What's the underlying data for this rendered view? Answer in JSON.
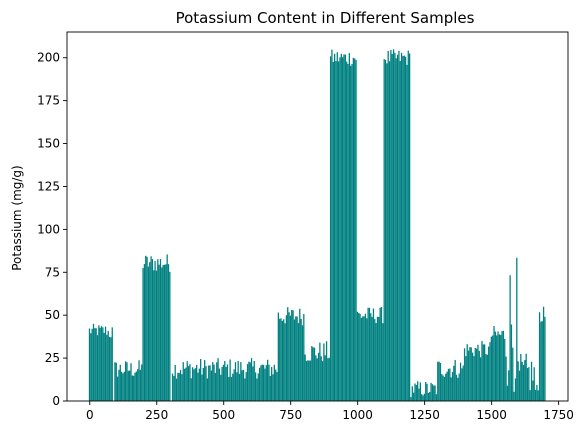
{
  "chart_data": {
    "type": "bar",
    "title": "Potassium Content in Different Samples",
    "xlabel": "",
    "ylabel": "Potassium (mg/g)",
    "xlim": [
      -85,
      1785
    ],
    "ylim": [
      0,
      215
    ],
    "xticks": [
      0,
      250,
      500,
      750,
      1000,
      1250,
      1500,
      1750
    ],
    "yticks": [
      0,
      25,
      50,
      75,
      100,
      125,
      150,
      175,
      200
    ],
    "bar_color": "#008080",
    "bar_width": 7,
    "grid": false,
    "segments": [
      {
        "x_start": 0,
        "x_end": 65,
        "low": 37,
        "high": 45
      },
      {
        "x_start": 70,
        "x_end": 85,
        "low": 35,
        "high": 45
      },
      {
        "x_start": 95,
        "x_end": 195,
        "low": 13,
        "high": 24
      },
      {
        "x_start": 200,
        "x_end": 300,
        "low": 75,
        "high": 86
      },
      {
        "x_start": 310,
        "x_end": 700,
        "low": 13,
        "high": 25
      },
      {
        "x_start": 705,
        "x_end": 800,
        "low": 44,
        "high": 55
      },
      {
        "x_start": 805,
        "x_end": 895,
        "low": 22,
        "high": 35
      },
      {
        "x_start": 900,
        "x_end": 995,
        "low": 195,
        "high": 205
      },
      {
        "x_start": 1000,
        "x_end": 1095,
        "low": 45,
        "high": 55
      },
      {
        "x_start": 1100,
        "x_end": 1195,
        "low": 195,
        "high": 205
      },
      {
        "x_start": 1200,
        "x_end": 1295,
        "low": 2,
        "high": 12
      },
      {
        "x_start": 1300,
        "x_end": 1395,
        "low": 13,
        "high": 25
      },
      {
        "x_start": 1400,
        "x_end": 1495,
        "low": 25,
        "high": 35
      },
      {
        "x_start": 1500,
        "x_end": 1550,
        "low": 33,
        "high": 44
      },
      {
        "x_start": 1555,
        "x_end": 1595,
        "low": 5,
        "high": 85
      },
      {
        "x_start": 1600,
        "x_end": 1660,
        "low": 3,
        "high": 28
      },
      {
        "x_start": 1665,
        "x_end": 1680,
        "low": 3,
        "high": 10
      },
      {
        "x_start": 1680,
        "x_end": 1700,
        "low": 45,
        "high": 55
      }
    ]
  }
}
